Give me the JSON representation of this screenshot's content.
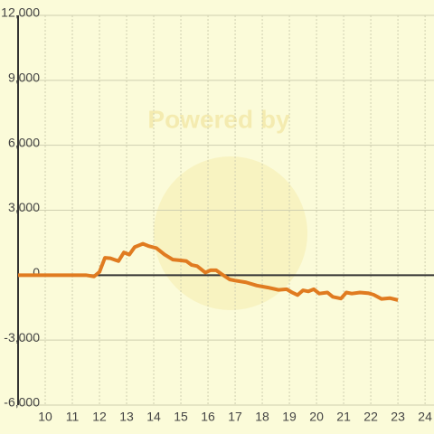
{
  "chart_data": {
    "type": "line",
    "watermark": "Powered by",
    "x": [
      9,
      11.5,
      11.8,
      12,
      12.2,
      12.4,
      12.7,
      12.9,
      13.1,
      13.3,
      13.6,
      13.8,
      14.1,
      14.4,
      14.7,
      15.0,
      15.2,
      15.4,
      15.6,
      15.9,
      16.1,
      16.3,
      16.5,
      16.8,
      17.0,
      17.4,
      17.8,
      18.2,
      18.6,
      18.9,
      19.1,
      19.3,
      19.5,
      19.7,
      19.9,
      20.1,
      20.4,
      20.6,
      20.9,
      21.1,
      21.3,
      21.6,
      21.9,
      22.1,
      22.4,
      22.7,
      23.0
    ],
    "series": [
      {
        "color": "#e07b20",
        "values": [
          0,
          0,
          -60,
          150,
          800,
          780,
          650,
          1050,
          950,
          1300,
          1450,
          1350,
          1250,
          950,
          720,
          680,
          650,
          470,
          420,
          120,
          230,
          230,
          50,
          -200,
          -250,
          -330,
          -480,
          -570,
          -680,
          -650,
          -800,
          -920,
          -700,
          -750,
          -650,
          -850,
          -800,
          -1000,
          -1080,
          -800,
          -850,
          -800,
          -830,
          -900,
          -1100,
          -1060,
          -1150
        ]
      }
    ],
    "xlim": [
      9,
      24.33
    ],
    "xticks": [
      10,
      11,
      12,
      13,
      14,
      15,
      16,
      17,
      18,
      19,
      20,
      21,
      22,
      23,
      24
    ],
    "ylim": [
      -6000,
      12000
    ],
    "yticks": [
      {
        "value": -6000,
        "label": "-6,000"
      },
      {
        "value": -3000,
        "label": "-3,000"
      },
      0,
      {
        "value": 3000,
        "label": "3,000"
      },
      {
        "value": 6000,
        "label": "6,000"
      },
      {
        "value": 9000,
        "label": "9,000"
      },
      {
        "value": 12000,
        "label": "12,000"
      }
    ],
    "grid": true
  }
}
